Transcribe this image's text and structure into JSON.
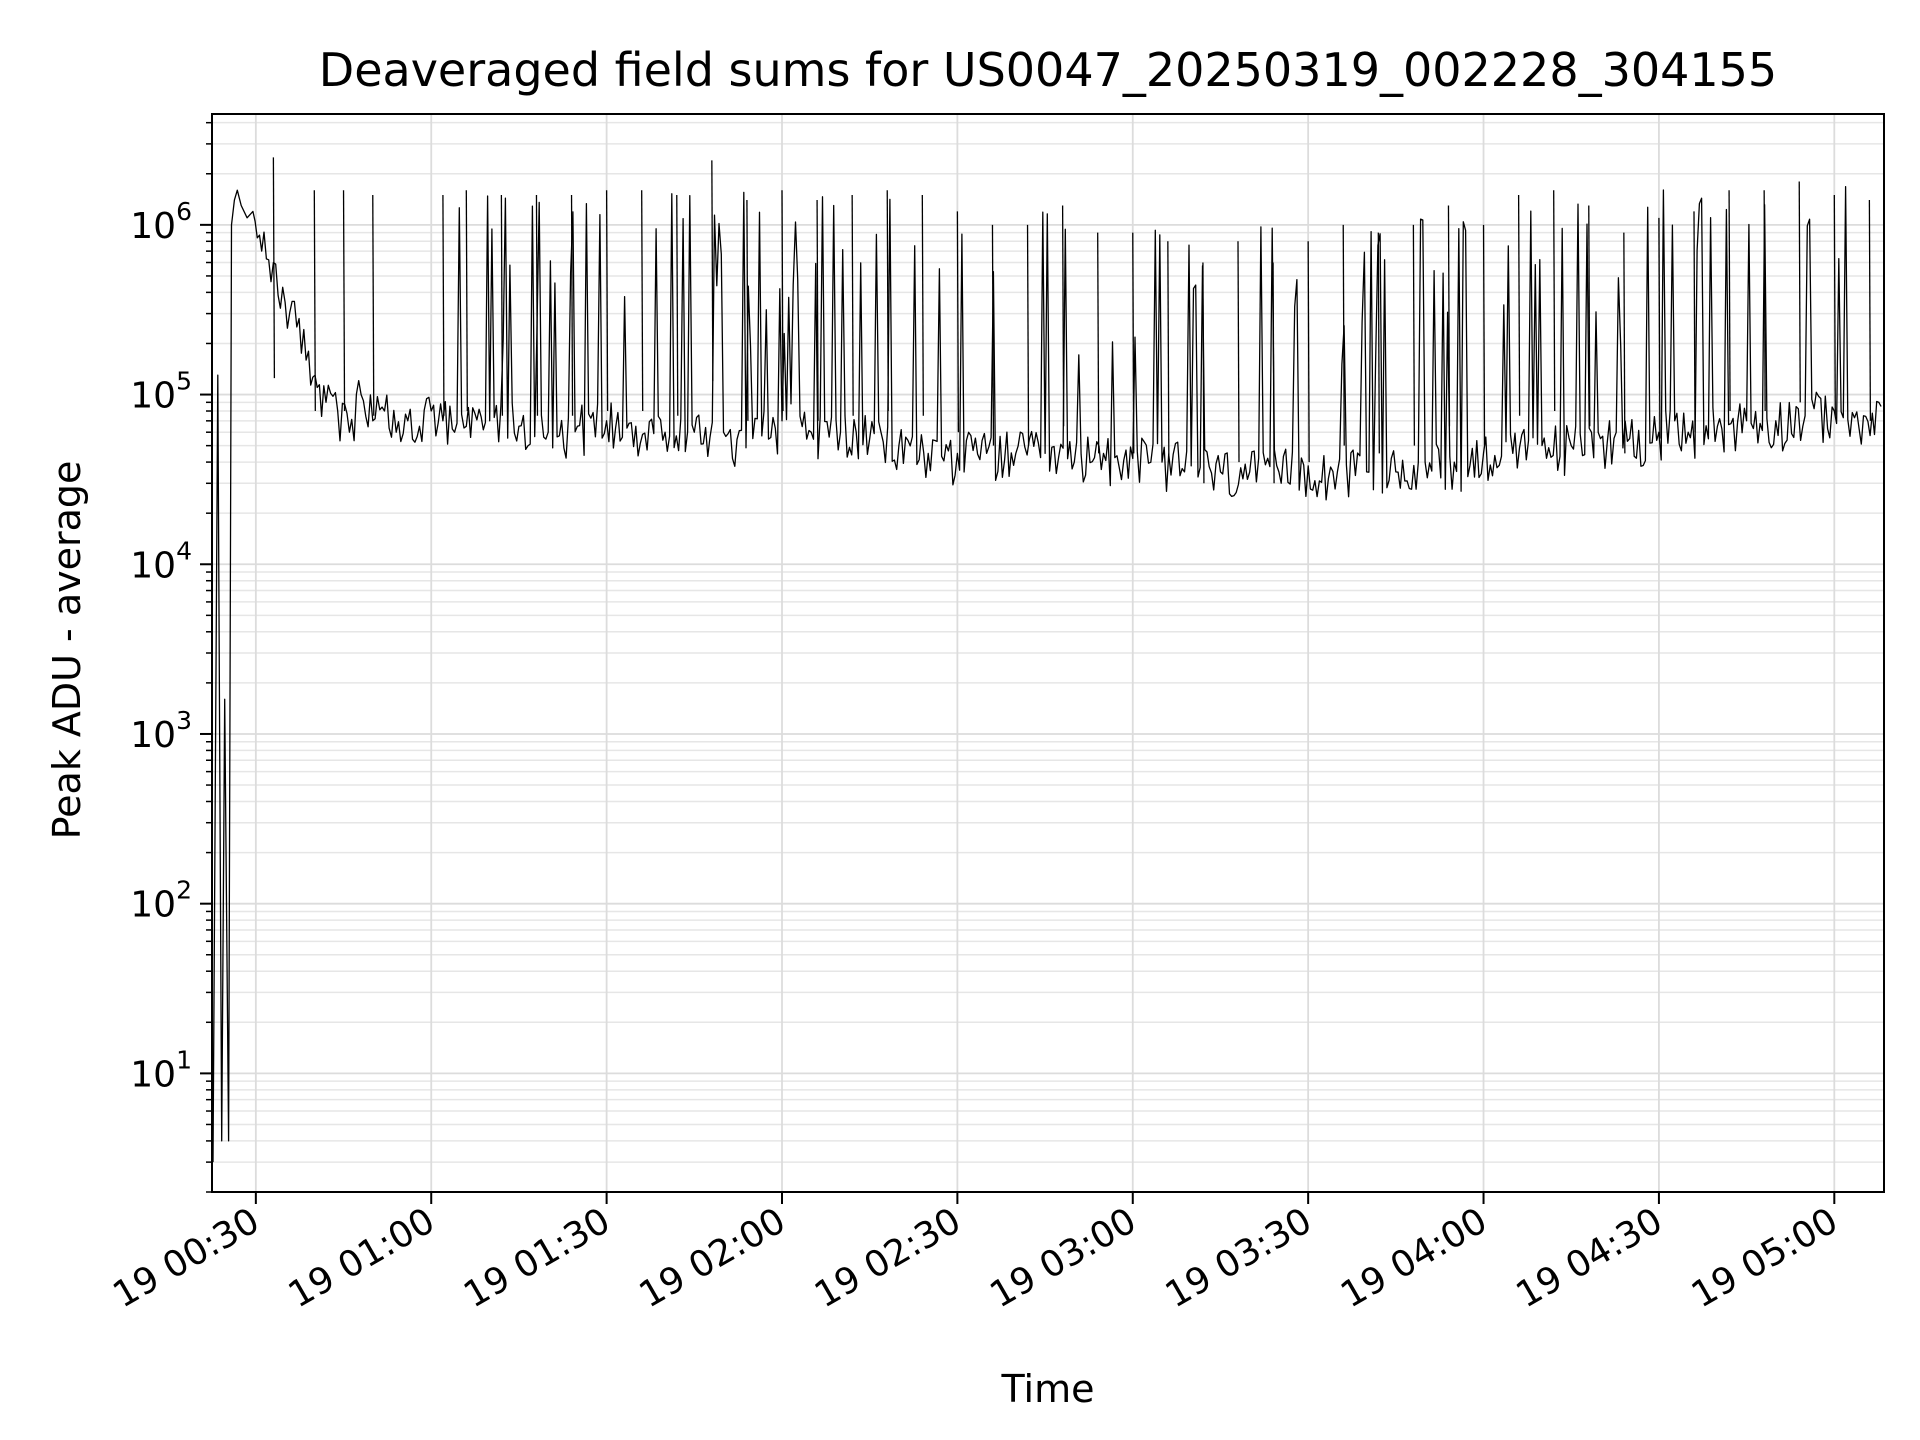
{
  "chart_data": {
    "type": "line",
    "title": "Deaveraged field sums for US0047_20250319_002228_304155",
    "xlabel": "Time",
    "ylabel": "Peak ADU - average",
    "yscale": "log",
    "ylim": [
      2,
      4500000
    ],
    "xlim": [
      "2025-03-19T00:22:30",
      "2025-03-19T05:08:30"
    ],
    "x_ticks": [
      {
        "t": "2025-03-19T00:30:00",
        "label": "19 00:30"
      },
      {
        "t": "2025-03-19T01:00:00",
        "label": "19 01:00"
      },
      {
        "t": "2025-03-19T01:30:00",
        "label": "19 01:30"
      },
      {
        "t": "2025-03-19T02:00:00",
        "label": "19 02:00"
      },
      {
        "t": "2025-03-19T02:30:00",
        "label": "19 02:30"
      },
      {
        "t": "2025-03-19T03:00:00",
        "label": "19 03:00"
      },
      {
        "t": "2025-03-19T03:30:00",
        "label": "19 03:30"
      },
      {
        "t": "2025-03-19T04:00:00",
        "label": "19 04:00"
      },
      {
        "t": "2025-03-19T04:30:00",
        "label": "19 04:30"
      },
      {
        "t": "2025-03-19T05:00:00",
        "label": "19 05:00"
      }
    ],
    "y_ticks": [
      {
        "v": 10,
        "base": "10",
        "exp": "1"
      },
      {
        "v": 100,
        "base": "10",
        "exp": "2"
      },
      {
        "v": 1000,
        "base": "10",
        "exp": "3"
      },
      {
        "v": 10000,
        "base": "10",
        "exp": "4"
      },
      {
        "v": 100000,
        "base": "10",
        "exp": "5"
      },
      {
        "v": 1000000,
        "base": "10",
        "exp": "6"
      }
    ],
    "grid": true,
    "line_color": "#000000",
    "series": [
      {
        "x": [
          "2025-03-19T00:22:40",
          "2025-03-19T00:23:30",
          "2025-03-19T00:24:10",
          "2025-03-19T00:24:40",
          "2025-03-19T00:25:20",
          "2025-03-19T00:25:50",
          "2025-03-19T00:26:20",
          "2025-03-19T00:26:50",
          "2025-03-19T00:27:30",
          "2025-03-19T00:28:30",
          "2025-03-19T00:29:30",
          "2025-03-19T00:31:00",
          "2025-03-19T00:33:00",
          "2025-03-19T00:35:00",
          "2025-03-19T00:37:00",
          "2025-03-19T00:39:00",
          "2025-03-19T00:40:30",
          "2025-03-19T00:42:00",
          "2025-03-19T00:44:00",
          "2025-03-19T00:46:00",
          "2025-03-19T00:48:00",
          "2025-03-19T00:50:00",
          "2025-03-19T00:52:00",
          "2025-03-19T00:54:00",
          "2025-03-19T00:56:00",
          "2025-03-19T00:58:00",
          "2025-03-19T01:00:00",
          "2025-03-19T01:02:00",
          "2025-03-19T01:04:00",
          "2025-03-19T01:06:00",
          "2025-03-19T01:10:00",
          "2025-03-19T01:15:00",
          "2025-03-19T01:20:00",
          "2025-03-19T01:25:00",
          "2025-03-19T01:30:00",
          "2025-03-19T01:35:00",
          "2025-03-19T01:40:00",
          "2025-03-19T01:45:00",
          "2025-03-19T01:50:00",
          "2025-03-19T01:55:00",
          "2025-03-19T02:00:00",
          "2025-03-19T02:05:00",
          "2025-03-19T02:10:00",
          "2025-03-19T02:15:00",
          "2025-03-19T02:20:00",
          "2025-03-19T02:25:00",
          "2025-03-19T02:30:00",
          "2025-03-19T02:35:00",
          "2025-03-19T02:40:00",
          "2025-03-19T02:45:00",
          "2025-03-19T02:50:00",
          "2025-03-19T02:55:00",
          "2025-03-19T03:00:00",
          "2025-03-19T03:05:00",
          "2025-03-19T03:10:00",
          "2025-03-19T03:15:00",
          "2025-03-19T03:20:00",
          "2025-03-19T03:25:00",
          "2025-03-19T03:30:00",
          "2025-03-19T03:35:00",
          "2025-03-19T03:40:00",
          "2025-03-19T03:45:00",
          "2025-03-19T03:50:00",
          "2025-03-19T03:55:00",
          "2025-03-19T04:00:00",
          "2025-03-19T04:05:00",
          "2025-03-19T04:10:00",
          "2025-03-19T04:15:00",
          "2025-03-19T04:20:00",
          "2025-03-19T04:25:00",
          "2025-03-19T04:30:00",
          "2025-03-19T04:35:00",
          "2025-03-19T04:40:00",
          "2025-03-19T04:45:00",
          "2025-03-19T04:50:00",
          "2025-03-19T04:55:00",
          "2025-03-19T05:00:00",
          "2025-03-19T05:05:00",
          "2025-03-19T05:08:00"
        ],
        "y": [
          3,
          130000,
          4,
          1600,
          4,
          1000000,
          1400000,
          1600000,
          1300000,
          1100000,
          1200000,
          700000,
          600000,
          350000,
          250000,
          180000,
          110000,
          90000,
          80000,
          60000,
          100000,
          70000,
          80000,
          60000,
          70000,
          65000,
          80000,
          70000,
          60000,
          65000,
          70000,
          65000,
          60000,
          65000,
          70000,
          65000,
          60000,
          60000,
          60000,
          55000,
          70000,
          60000,
          60000,
          55000,
          50000,
          45000,
          45000,
          45000,
          45000,
          45000,
          40000,
          45000,
          42000,
          40000,
          38000,
          35000,
          35000,
          35000,
          38000,
          35000,
          35000,
          35000,
          40000,
          40000,
          45000,
          45000,
          50000,
          50000,
          55000,
          55000,
          60000,
          60000,
          65000,
          70000,
          70000,
          75000,
          80000,
          75000,
          85000
        ]
      }
    ],
    "spikes": {
      "description_note": "",
      "x": [
        "2025-03-19T00:33:00",
        "2025-03-19T00:40:00",
        "2025-03-19T00:45:00",
        "2025-03-19T00:50:00",
        "2025-03-19T01:02:00",
        "2025-03-19T01:06:00",
        "2025-03-19T01:12:00",
        "2025-03-19T01:18:00",
        "2025-03-19T01:24:00",
        "2025-03-19T01:30:00",
        "2025-03-19T01:36:00",
        "2025-03-19T01:42:00",
        "2025-03-19T01:48:00",
        "2025-03-19T01:54:00",
        "2025-03-19T02:00:00",
        "2025-03-19T02:06:00",
        "2025-03-19T02:12:00",
        "2025-03-19T02:18:00",
        "2025-03-19T02:24:00",
        "2025-03-19T02:30:00",
        "2025-03-19T02:36:00",
        "2025-03-19T02:42:00",
        "2025-03-19T02:48:00",
        "2025-03-19T02:54:00",
        "2025-03-19T03:00:00",
        "2025-03-19T03:06:00",
        "2025-03-19T03:12:00",
        "2025-03-19T03:18:00",
        "2025-03-19T03:24:00",
        "2025-03-19T03:30:00",
        "2025-03-19T03:36:00",
        "2025-03-19T03:42:00",
        "2025-03-19T03:48:00",
        "2025-03-19T03:54:00",
        "2025-03-19T04:00:00",
        "2025-03-19T04:06:00",
        "2025-03-19T04:12:00",
        "2025-03-19T04:18:00",
        "2025-03-19T04:24:00",
        "2025-03-19T04:30:00",
        "2025-03-19T04:36:00",
        "2025-03-19T04:42:00",
        "2025-03-19T04:48:00",
        "2025-03-19T04:54:00",
        "2025-03-19T05:00:00",
        "2025-03-19T05:06:00"
      ],
      "y": [
        2500000,
        1600000,
        1600000,
        1500000,
        1500000,
        1600000,
        1500000,
        1500000,
        1500000,
        1600000,
        1600000,
        1500000,
        2400000,
        1400000,
        1600000,
        1400000,
        1500000,
        1600000,
        1500000,
        1200000,
        1000000,
        1000000,
        1300000,
        900000,
        900000,
        800000,
        600000,
        800000,
        600000,
        800000,
        1000000,
        900000,
        1000000,
        1300000,
        1000000,
        1500000,
        1600000,
        1300000,
        900000,
        1100000,
        1200000,
        1600000,
        1600000,
        1800000,
        1500000,
        1400000
      ]
    }
  }
}
